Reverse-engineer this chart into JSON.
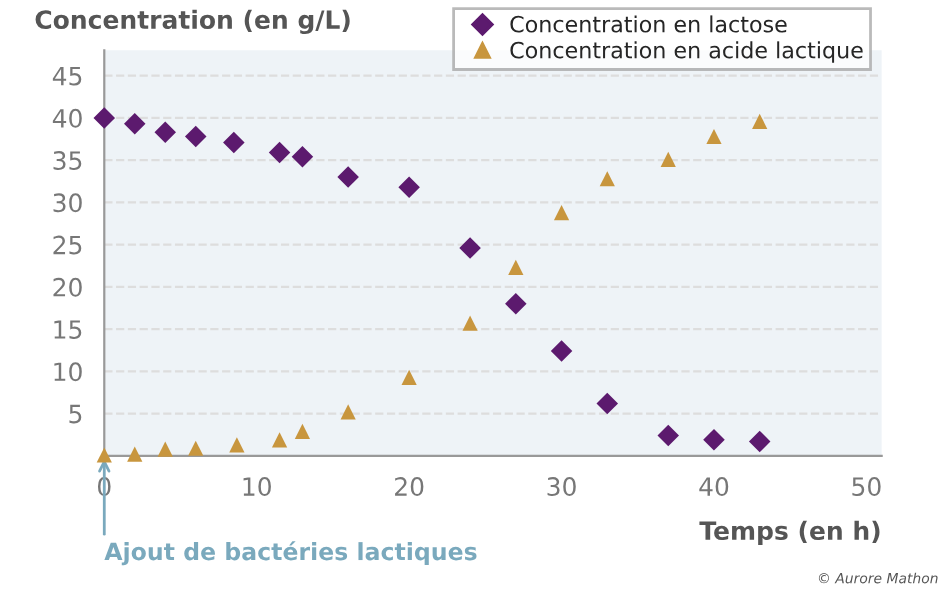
{
  "chart_data": {
    "type": "scatter",
    "ylabel": "Concentration (en g/L)",
    "xlabel": "Temps (en h)",
    "series": [
      {
        "name": "Concentration en lactose",
        "color": "#5c1a6e",
        "marker": "diamond",
        "x": [
          0,
          2,
          4,
          6,
          8.5,
          11.5,
          13,
          16,
          20,
          24,
          27,
          30,
          33,
          37,
          40,
          43
        ],
        "values": [
          40,
          39.3,
          38.3,
          37.8,
          37.1,
          35.9,
          35.4,
          33,
          31.8,
          24.6,
          18,
          12.4,
          6.2,
          2.4,
          1.9,
          1.7
        ]
      },
      {
        "name": "Concentration en acide lactique",
        "color": "#c8963e",
        "marker": "triangle",
        "x": [
          0,
          2,
          4,
          6,
          8.7,
          11.5,
          13,
          16,
          20,
          24,
          27,
          30,
          33,
          37,
          40,
          43
        ],
        "values": [
          0.1,
          0.2,
          0.8,
          0.9,
          1.3,
          1.9,
          2.9,
          5.2,
          9.3,
          15.7,
          22.3,
          28.8,
          32.8,
          35.1,
          37.8,
          39.6
        ]
      }
    ],
    "xlim": [
      0,
      51
    ],
    "ylim": [
      0,
      48
    ],
    "xticks": [
      0,
      10,
      20,
      30,
      40,
      50
    ],
    "yticks": [
      5,
      10,
      15,
      20,
      25,
      30,
      35,
      40,
      45
    ],
    "grid": "y",
    "legend": "top right",
    "annotations": [
      {
        "text": "Ajout de bactéries lactiques",
        "x": 0,
        "y": 0
      },
      "© Aurore Mathon"
    ]
  }
}
